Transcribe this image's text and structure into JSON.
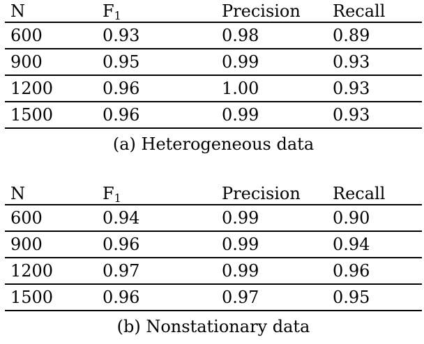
{
  "page": {
    "background_color": "#ffffff",
    "text_color": "#000000",
    "rule_color": "#000000"
  },
  "tables": [
    {
      "caption": "(a) Heterogeneous data",
      "headers": {
        "n": "N",
        "f1_base": "F",
        "f1_sub": "1",
        "precision": "Precision",
        "recall": "Recall"
      },
      "rows": [
        [
          "600",
          "0.93",
          "0.98",
          "0.89"
        ],
        [
          "900",
          "0.95",
          "0.99",
          "0.93"
        ],
        [
          "1200",
          "0.96",
          "1.00",
          "0.93"
        ],
        [
          "1500",
          "0.96",
          "0.99",
          "0.93"
        ]
      ]
    },
    {
      "caption": "(b) Nonstationary data",
      "headers": {
        "n": "N",
        "f1_base": "F",
        "f1_sub": "1",
        "precision": "Precision",
        "recall": "Recall"
      },
      "rows": [
        [
          "600",
          "0.94",
          "0.99",
          "0.90"
        ],
        [
          "900",
          "0.96",
          "0.99",
          "0.94"
        ],
        [
          "1200",
          "0.97",
          "0.99",
          "0.96"
        ],
        [
          "1500",
          "0.96",
          "0.97",
          "0.95"
        ]
      ]
    }
  ],
  "chart_data": [
    {
      "type": "table",
      "title": "(a) Heterogeneous data",
      "columns": [
        "N",
        "F1",
        "Precision",
        "Recall"
      ],
      "rows": [
        [
          600,
          0.93,
          0.98,
          0.89
        ],
        [
          900,
          0.95,
          0.99,
          0.93
        ],
        [
          1200,
          0.96,
          1.0,
          0.93
        ],
        [
          1500,
          0.96,
          0.99,
          0.93
        ]
      ]
    },
    {
      "type": "table",
      "title": "(b) Nonstationary data",
      "columns": [
        "N",
        "F1",
        "Precision",
        "Recall"
      ],
      "rows": [
        [
          600,
          0.94,
          0.99,
          0.9
        ],
        [
          900,
          0.96,
          0.99,
          0.94
        ],
        [
          1200,
          0.97,
          0.99,
          0.96
        ],
        [
          1500,
          0.96,
          0.97,
          0.95
        ]
      ]
    }
  ]
}
